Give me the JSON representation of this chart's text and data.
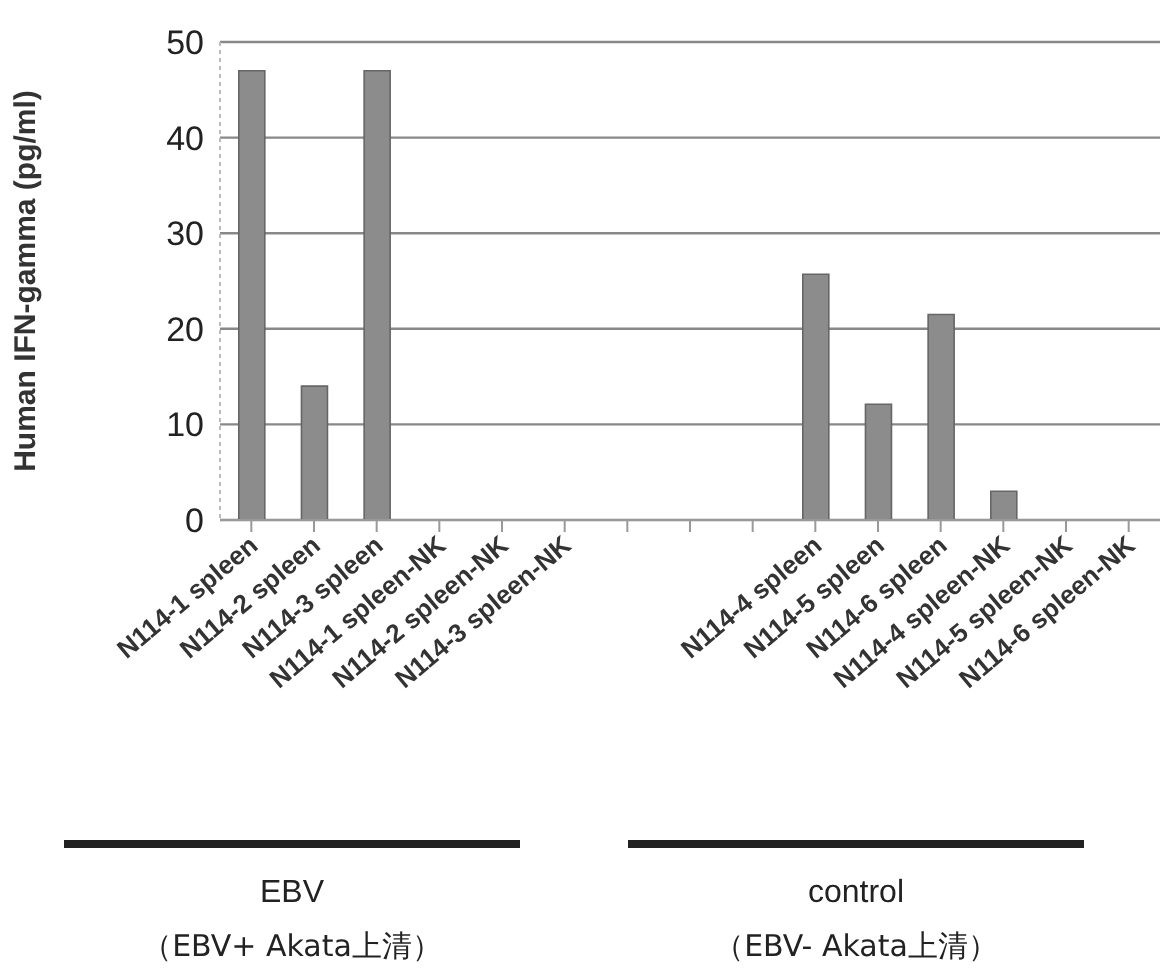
{
  "chart_data": {
    "type": "bar",
    "ylabel": "Human IFN-gamma  (pg/ml)",
    "categories": [
      "N114-1 spleen",
      "N114-2 spleen",
      "N114-3 spleen",
      "N114-1 spleen-NK",
      "N114-2 spleen-NK",
      "N114-3 spleen-NK",
      null,
      null,
      null,
      "N114-4 spleen",
      "N114-5 spleen",
      "N114-6 spleen",
      "N114-4 spleen-NK",
      "N114-5 spleen-NK",
      "N114-6 spleen-NK"
    ],
    "values": [
      47,
      14,
      47,
      0,
      0,
      0,
      null,
      null,
      null,
      25.7,
      12.1,
      21.5,
      3,
      0,
      0
    ],
    "color": "#8c8c8c",
    "ylim": [
      0,
      50
    ],
    "yticks": [
      0,
      10,
      20,
      30,
      40,
      50
    ],
    "grid": "y",
    "annotations": [
      "EBV",
      "（EBV+ Akata上清）",
      "control",
      "（EBV- Akata上清）"
    ]
  }
}
